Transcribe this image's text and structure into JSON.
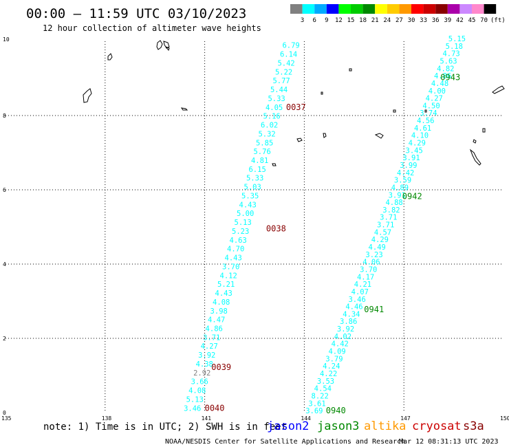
{
  "header": {
    "title": "00:00 – 11:59 UTC 03/10/2023",
    "subtitle": "12 hour collection of altimeter wave heights"
  },
  "colorbar": {
    "colors": [
      "#808080",
      "#00ffff",
      "#00aaff",
      "#0000ff",
      "#00ff00",
      "#00cc00",
      "#008800",
      "#ffff00",
      "#ffcc00",
      "#ff9900",
      "#ff0000",
      "#cc0000",
      "#880000",
      "#aa00aa",
      "#cc88ff",
      "#ff88cc",
      "#000000"
    ],
    "labels": [
      "3",
      "6",
      "9",
      "12",
      "15",
      "18",
      "21",
      "24",
      "27",
      "30",
      "33",
      "36",
      "39",
      "42",
      "45",
      "70"
    ],
    "unit": "(ft)"
  },
  "axes": {
    "x_ticks": [
      "135",
      "138",
      "141",
      "144",
      "147",
      "150"
    ],
    "y_ticks": [
      "0",
      "2",
      "4",
      "6",
      "8",
      "10"
    ],
    "xlim": [
      135,
      150
    ],
    "ylim": [
      0,
      10
    ]
  },
  "satellites": [
    {
      "name": "jason2",
      "color": "#0000ff"
    },
    {
      "name": "jason3",
      "color": "#008800"
    },
    {
      "name": "altika",
      "color": "#ff9900"
    },
    {
      "name": "cryosat",
      "color": "#cc0000"
    },
    {
      "name": "s3a",
      "color": "#880000"
    }
  ],
  "footer": {
    "note": "note: 1) Time is in UTC; 2) SWH is in feet",
    "credit": "NOAA/NESDIS Center for Satellite Applications and Research",
    "timestamp": "Mar 12 08:31:13 UTC 2023"
  },
  "passes": [
    {
      "time": "0037",
      "satellite": "s3a",
      "lon": 143.45,
      "lat": 8.15
    },
    {
      "time": "0038",
      "satellite": "s3a",
      "lon": 142.85,
      "lat": 4.88
    },
    {
      "time": "0039",
      "satellite": "s3a",
      "lon": 141.2,
      "lat": 1.15
    },
    {
      "time": "0040",
      "satellite": "s3a",
      "lon": 141.0,
      "lat": 0.05
    },
    {
      "time": "0943",
      "satellite": "jason3",
      "lon": 148.1,
      "lat": 8.95
    },
    {
      "time": "0942",
      "satellite": "jason3",
      "lon": 146.95,
      "lat": 5.75
    },
    {
      "time": "0941",
      "satellite": "jason3",
      "lon": 145.8,
      "lat": 2.7
    },
    {
      "time": "0940",
      "satellite": "jason3",
      "lon": 144.65,
      "lat": -0.02
    }
  ],
  "tracks": [
    {
      "satellite": "s3a",
      "lon_start": 143.6,
      "lat_start": 9.82,
      "lon_end": 140.63,
      "lat_end": 0.05,
      "values": [
        "6.79",
        "6.14",
        "5.42",
        "5.22",
        "5.77",
        "5.44",
        "5.33",
        "4.05",
        "5.16",
        "6.02",
        "5.32",
        "5.85",
        "5.76",
        "4.81",
        "6.15",
        "5.33",
        "5.03",
        "5.35",
        "4.43",
        "5.00",
        "5.13",
        "5.23",
        "4.63",
        "4.70",
        "4.43",
        "3.70",
        "4.12",
        "5.21",
        "4.43",
        "4.08",
        "3.98",
        "4.47",
        "4.86",
        "3.71",
        "4.27",
        "3.92",
        "4.38",
        "2.92",
        "3.66",
        "4.08",
        "5.13",
        "3.46"
      ]
    },
    {
      "satellite": "jason3",
      "lon_start": 148.6,
      "lat_start": 10.0,
      "lon_end": 144.3,
      "lat_end": -0.02,
      "values": [
        "5.15",
        "5.18",
        "4.73",
        "5.63",
        "4.82",
        "4.86",
        "4.48",
        "4.00",
        "4.27",
        "4.50",
        "3.74",
        "4.56",
        "4.61",
        "4.10",
        "4.29",
        "3.45",
        "3.91",
        "3.99",
        "4.42",
        "3.59",
        "4.89",
        "3.91",
        "4.88",
        "3.82",
        "3.71",
        "3.71",
        "4.57",
        "4.29",
        "4.49",
        "3.23",
        "4.06",
        "3.70",
        "4.17",
        "4.21",
        "4.07",
        "3.46",
        "4.46",
        "4.34",
        "3.86",
        "3.92",
        "4.02",
        "4.42",
        "4.09",
        "3.79",
        "4.24",
        "4.22",
        "3.53",
        "4.54",
        "8.22",
        "3.61",
        "3.69"
      ]
    }
  ]
}
